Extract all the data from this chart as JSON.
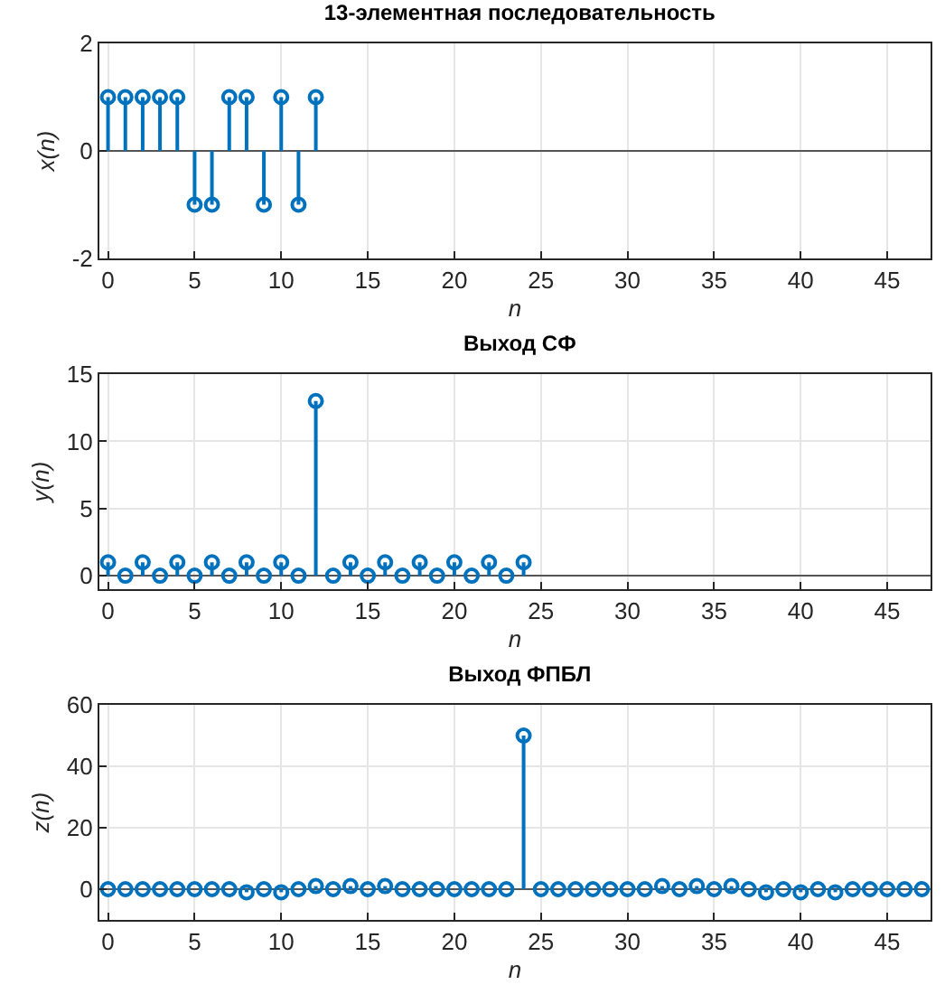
{
  "chart_data": [
    {
      "type": "lollipop",
      "title": "13-элементная последовательность",
      "xlabel": "n",
      "ylabel": "x(n)",
      "x": [
        0,
        1,
        2,
        3,
        4,
        5,
        6,
        7,
        8,
        9,
        10,
        11,
        12
      ],
      "values": [
        1,
        1,
        1,
        1,
        1,
        -1,
        -1,
        1,
        1,
        -1,
        1,
        -1,
        1
      ],
      "color": "#0072bd",
      "xlim": [
        -0.5,
        47.5
      ],
      "xticks": [
        0,
        5,
        10,
        15,
        20,
        25,
        30,
        35,
        40,
        45
      ],
      "ylim": [
        -2,
        2
      ],
      "yticks": [
        -2,
        0,
        2
      ],
      "grid": true,
      "marker": "circle"
    },
    {
      "type": "lollipop",
      "title": "Выход СФ",
      "xlabel": "n",
      "ylabel": "y(n)",
      "x": [
        0,
        1,
        2,
        3,
        4,
        5,
        6,
        7,
        8,
        9,
        10,
        11,
        12,
        13,
        14,
        15,
        16,
        17,
        18,
        19,
        20,
        21,
        22,
        23,
        24
      ],
      "values": [
        1,
        0,
        1,
        0,
        1,
        0,
        1,
        0,
        1,
        0,
        1,
        0,
        13,
        0,
        1,
        0,
        1,
        0,
        1,
        0,
        1,
        0,
        1,
        0,
        1
      ],
      "color": "#0072bd",
      "xlim": [
        -0.5,
        47.5
      ],
      "xticks": [
        0,
        5,
        10,
        15,
        20,
        25,
        30,
        35,
        40,
        45
      ],
      "ylim": [
        -1,
        15
      ],
      "yticks": [
        0,
        5,
        10,
        15
      ],
      "grid": true,
      "marker": "circle"
    },
    {
      "type": "lollipop",
      "title": "Выход ФПБЛ",
      "xlabel": "n",
      "ylabel": "z(n)",
      "x": [
        0,
        1,
        2,
        3,
        4,
        5,
        6,
        7,
        8,
        9,
        10,
        11,
        12,
        13,
        14,
        15,
        16,
        17,
        18,
        19,
        20,
        21,
        22,
        23,
        24,
        25,
        26,
        27,
        28,
        29,
        30,
        31,
        32,
        33,
        34,
        35,
        36,
        37,
        38,
        39,
        40,
        41,
        42,
        43,
        44,
        45,
        46,
        47
      ],
      "values": [
        0,
        0,
        0,
        0,
        0,
        0,
        0,
        0,
        -1,
        0,
        -1,
        0,
        1,
        0,
        1,
        0,
        1,
        0,
        0,
        0,
        0,
        0,
        0,
        0,
        50,
        0,
        0,
        0,
        0,
        0,
        0,
        0,
        1,
        0,
        1,
        0,
        1,
        0,
        -1,
        0,
        -1,
        0,
        -1,
        0,
        0,
        0,
        0,
        0
      ],
      "color": "#0072bd",
      "xlim": [
        -0.5,
        47.5
      ],
      "xticks": [
        0,
        5,
        10,
        15,
        20,
        25,
        30,
        35,
        40,
        45
      ],
      "ylim": [
        -10,
        60
      ],
      "yticks": [
        0,
        20,
        40,
        60
      ],
      "grid": true,
      "marker": "circle"
    }
  ]
}
